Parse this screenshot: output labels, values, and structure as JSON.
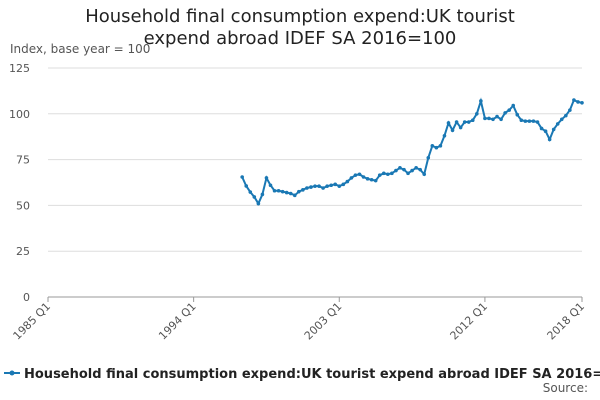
{
  "chart_data": {
    "type": "line",
    "title": "Household final consumption expend:UK tourist expend abroad IDEF SA 2016=100",
    "y_label": "Index, base year = 100",
    "source": "Source:",
    "categories": [
      "1985 Q1",
      "1985 Q2",
      "1985 Q3",
      "1985 Q4",
      "1986 Q1",
      "1986 Q2",
      "1986 Q3",
      "1986 Q4",
      "1987 Q1",
      "1987 Q2",
      "1987 Q3",
      "1987 Q4",
      "1988 Q1",
      "1988 Q2",
      "1988 Q3",
      "1988 Q4",
      "1989 Q1",
      "1989 Q2",
      "1989 Q3",
      "1989 Q4",
      "1990 Q1",
      "1990 Q2",
      "1990 Q3",
      "1990 Q4",
      "1991 Q1",
      "1991 Q2",
      "1991 Q3",
      "1991 Q4",
      "1992 Q1",
      "1992 Q2",
      "1992 Q3",
      "1992 Q4",
      "1993 Q1",
      "1993 Q2",
      "1993 Q3",
      "1993 Q4",
      "1994 Q1",
      "1994 Q2",
      "1994 Q3",
      "1994 Q4",
      "1995 Q1",
      "1995 Q2",
      "1995 Q3",
      "1995 Q4",
      "1996 Q1",
      "1996 Q2",
      "1996 Q3",
      "1996 Q4",
      "1997 Q1",
      "1997 Q2",
      "1997 Q3",
      "1997 Q4",
      "1998 Q1",
      "1998 Q2",
      "1998 Q3",
      "1998 Q4",
      "1999 Q1",
      "1999 Q2",
      "1999 Q3",
      "1999 Q4",
      "2000 Q1",
      "2000 Q2",
      "2000 Q3",
      "2000 Q4",
      "2001 Q1",
      "2001 Q2",
      "2001 Q3",
      "2001 Q4",
      "2002 Q1",
      "2002 Q2",
      "2002 Q3",
      "2002 Q4",
      "2003 Q1",
      "2003 Q2",
      "2003 Q3",
      "2003 Q4",
      "2004 Q1",
      "2004 Q2",
      "2004 Q3",
      "2004 Q4",
      "2005 Q1",
      "2005 Q2",
      "2005 Q3",
      "2005 Q4",
      "2006 Q1",
      "2006 Q2",
      "2006 Q3",
      "2006 Q4",
      "2007 Q1",
      "2007 Q2",
      "2007 Q3",
      "2007 Q4",
      "2008 Q1",
      "2008 Q2",
      "2008 Q3",
      "2008 Q4",
      "2009 Q1",
      "2009 Q2",
      "2009 Q3",
      "2009 Q4",
      "2010 Q1",
      "2010 Q2",
      "2010 Q3",
      "2010 Q4",
      "2011 Q1",
      "2011 Q2",
      "2011 Q3",
      "2011 Q4",
      "2012 Q1",
      "2012 Q2",
      "2012 Q3",
      "2012 Q4",
      "2013 Q1",
      "2013 Q2",
      "2013 Q3",
      "2013 Q4",
      "2014 Q1",
      "2014 Q2",
      "2014 Q3",
      "2014 Q4",
      "2015 Q1",
      "2015 Q2",
      "2015 Q3",
      "2015 Q4",
      "2016 Q1",
      "2016 Q2",
      "2016 Q3",
      "2016 Q4",
      "2017 Q1",
      "2017 Q2",
      "2017 Q3",
      "2017 Q4",
      "2018 Q1"
    ],
    "series": [
      {
        "name": "Household final consumption expend:UK tourist expend abroad IDEF SA 2016=100",
        "color": "#1a78b4",
        "values": [
          null,
          null,
          null,
          null,
          null,
          null,
          null,
          null,
          null,
          null,
          null,
          null,
          null,
          null,
          null,
          null,
          null,
          null,
          null,
          null,
          null,
          null,
          null,
          null,
          null,
          null,
          null,
          null,
          null,
          null,
          null,
          null,
          null,
          null,
          null,
          null,
          null,
          null,
          null,
          null,
          null,
          null,
          null,
          null,
          null,
          null,
          null,
          null,
          65.5,
          60.6,
          57.3,
          54.6,
          51,
          56,
          65,
          61,
          58,
          58,
          57.5,
          57,
          56.5,
          55.5,
          57.5,
          58.5,
          59.5,
          60,
          60.5,
          60.5,
          59.5,
          60.5,
          61,
          61.5,
          60.5,
          61.5,
          63,
          65,
          66.5,
          67,
          65.5,
          64.5,
          64,
          63.5,
          66.5,
          67.5,
          67,
          67.5,
          69,
          70.5,
          69.5,
          67.5,
          69,
          70.5,
          69.5,
          67,
          76,
          82.5,
          81.5,
          82.5,
          88,
          95,
          91,
          95.5,
          92.5,
          95.5,
          95.5,
          96.5,
          100,
          107,
          97.5,
          97.5,
          97,
          98.5,
          97,
          100.5,
          102,
          104.5,
          99.5,
          96.5,
          96,
          96,
          96,
          95.5,
          92,
          90.5,
          86,
          91.5,
          94.5,
          97,
          99,
          102,
          107.5,
          106.5,
          106
        ]
      }
    ],
    "xticks": [
      "1985 Q1",
      "1994 Q1",
      "2003 Q1",
      "2012 Q1",
      "2018 Q1"
    ],
    "ylim": [
      0,
      125
    ],
    "yticks": [
      0,
      25,
      50,
      75,
      100,
      125
    ],
    "grid": true,
    "legend": "bottom-left"
  }
}
